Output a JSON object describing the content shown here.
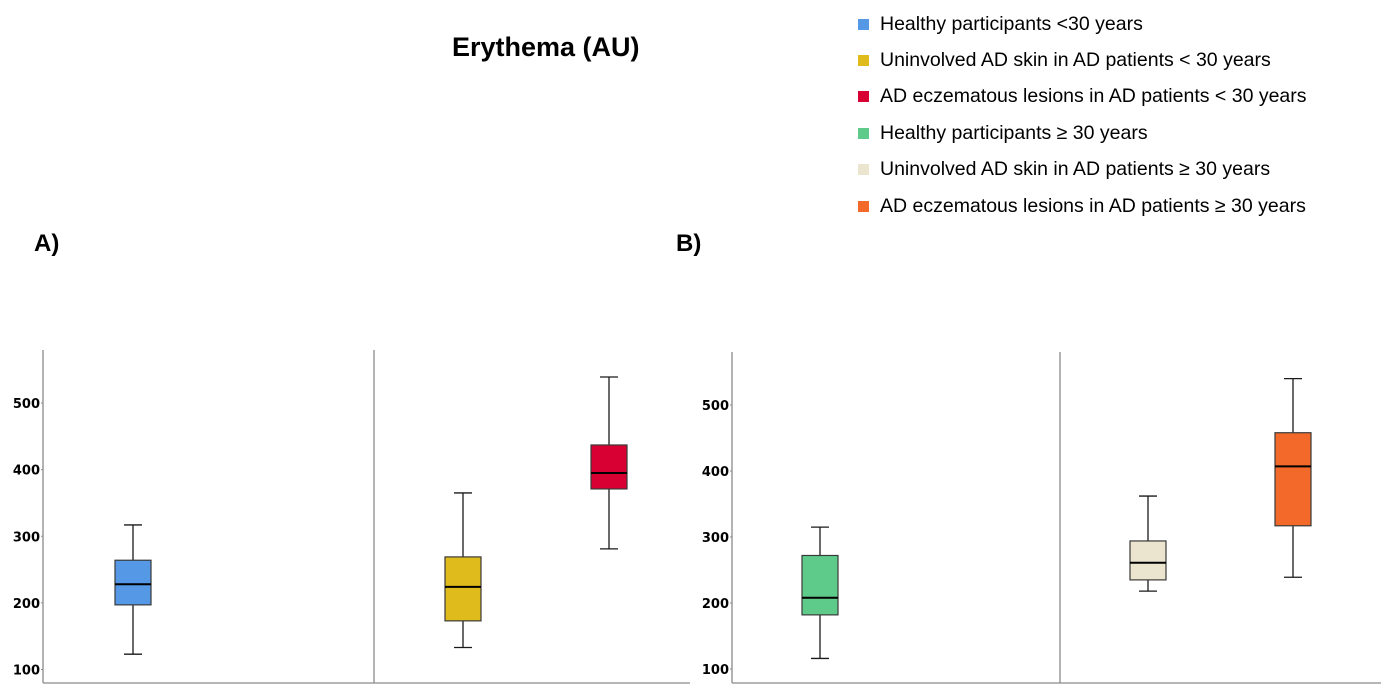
{
  "title": "Erythema (AU)",
  "legend": [
    {
      "label": "Healthy participants <30 years",
      "color": "#5599e6"
    },
    {
      "label": "Uninvolved AD skin in AD patients < 30 years",
      "color": "#e0bb1c"
    },
    {
      "label": "AD eczematous lesions in AD patients < 30 years",
      "color": "#d80032"
    },
    {
      "label": "Healthy participants  ≥ 30 years",
      "color": "#5ecb8b"
    },
    {
      "label": "Uninvolved AD skin in AD patients  ≥ 30 years",
      "color": "#ebe4ce"
    },
    {
      "label": "AD eczematous lesions in AD patients  ≥ 30 years",
      "color": "#f2692a"
    }
  ],
  "chart_data": [
    {
      "type": "box",
      "panel_label": "A)",
      "y_ticks": [
        100,
        200,
        300,
        400,
        500
      ],
      "boxes": [
        {
          "group": "Healthy participants <30 years",
          "color": "#5599e6",
          "min": 123,
          "q1": 197,
          "median": 228,
          "q3": 264,
          "max": 317
        },
        {
          "group": "Uninvolved AD skin in AD patients < 30 years",
          "color": "#e0bb1c",
          "min": 133,
          "q1": 173,
          "median": 224,
          "q3": 269,
          "max": 365
        },
        {
          "group": "AD eczematous lesions in AD patients < 30 years",
          "color": "#d80032",
          "min": 281,
          "q1": 371,
          "median": 395,
          "q3": 437,
          "max": 539
        }
      ]
    },
    {
      "type": "box",
      "panel_label": "B)",
      "y_ticks": [
        100,
        200,
        300,
        400,
        500
      ],
      "boxes": [
        {
          "group": "Healthy participants  ≥ 30 years",
          "color": "#5ecb8b",
          "min": 116,
          "q1": 182,
          "median": 208,
          "q3": 272,
          "max": 315
        },
        {
          "group": "Uninvolved AD skin in AD patients  ≥ 30 years",
          "color": "#ebe4ce",
          "min": 218,
          "q1": 235,
          "median": 261,
          "q3": 294,
          "max": 362
        },
        {
          "group": "AD eczematous lesions in AD patients  ≥ 30 years",
          "color": "#f2692a",
          "min": 239,
          "q1": 317,
          "median": 407,
          "q3": 458,
          "max": 540
        }
      ]
    }
  ]
}
